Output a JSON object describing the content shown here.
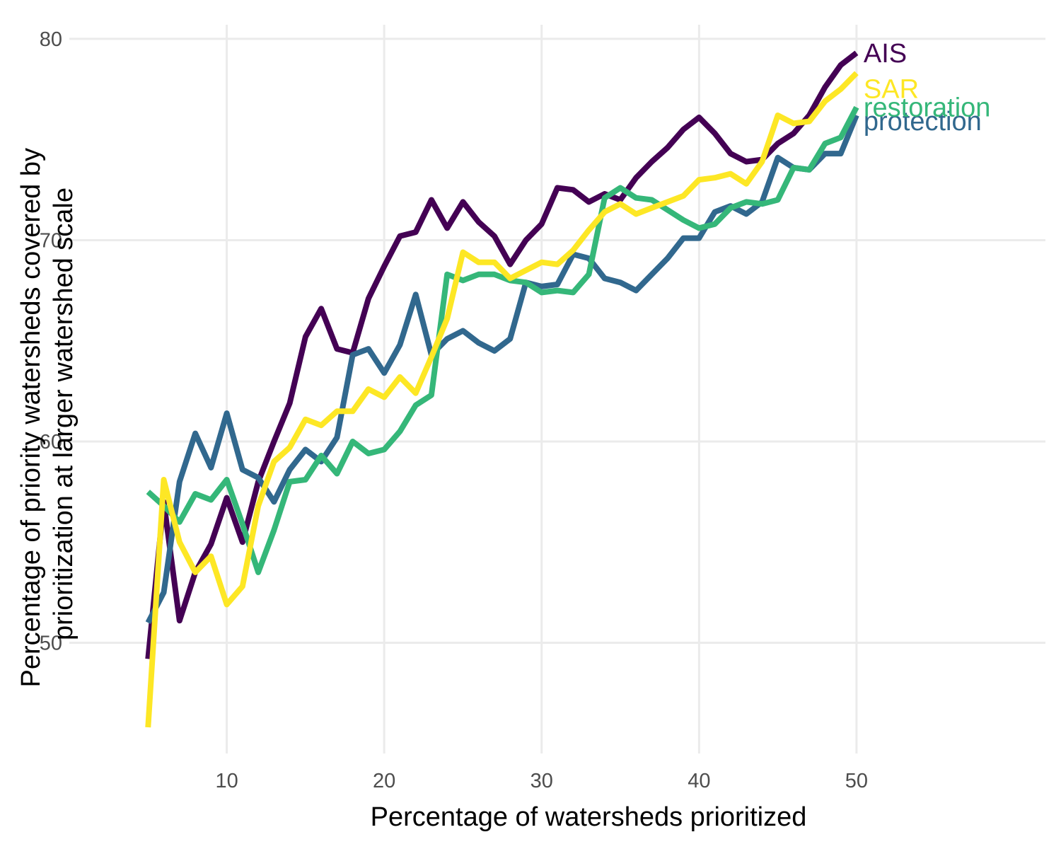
{
  "chart_data": {
    "type": "line",
    "xlabel": "Percentage of watersheds prioritized",
    "ylabel_lines": [
      "Percentage of priority watersheds covered by",
      "prioritization at larger watershed scale"
    ],
    "xlim": [
      0,
      62
    ],
    "ylim": [
      44.5,
      80.7
    ],
    "x_ticks": [
      10,
      20,
      30,
      40,
      50
    ],
    "y_ticks": [
      50,
      60,
      70,
      80
    ],
    "grid": true,
    "legend": "direct labels at line ends",
    "x": [
      5,
      6,
      7,
      8,
      9,
      10,
      11,
      12,
      13,
      14,
      15,
      16,
      17,
      18,
      19,
      20,
      21,
      22,
      23,
      24,
      25,
      26,
      27,
      28,
      29,
      30,
      31,
      32,
      33,
      34,
      35,
      36,
      37,
      38,
      39,
      40,
      41,
      42,
      43,
      44,
      45,
      46,
      47,
      48,
      49,
      50
    ],
    "series": [
      {
        "name": "AIS",
        "color": "#440154",
        "values": [
          49.2,
          57.0,
          51.1,
          53.5,
          54.9,
          57.2,
          55.0,
          58.0,
          60.0,
          61.9,
          65.2,
          66.6,
          64.6,
          64.4,
          67.1,
          68.7,
          70.2,
          70.4,
          72.0,
          70.6,
          71.9,
          70.9,
          70.2,
          68.8,
          70.0,
          70.8,
          72.6,
          72.5,
          71.9,
          72.3,
          72.0,
          73.1,
          73.9,
          74.6,
          75.5,
          76.1,
          75.3,
          74.3,
          73.9,
          74.0,
          74.8,
          75.3,
          76.2,
          77.6,
          78.7,
          79.3
        ]
      },
      {
        "name": "protection",
        "color": "#31688e",
        "values": [
          51.0,
          52.5,
          58.0,
          60.4,
          58.7,
          61.4,
          58.6,
          58.2,
          57.0,
          58.6,
          59.6,
          59.0,
          60.2,
          64.3,
          64.6,
          63.4,
          64.8,
          67.3,
          64.3,
          65.1,
          65.5,
          64.9,
          64.5,
          65.1,
          67.9,
          67.7,
          67.8,
          69.3,
          69.1,
          68.1,
          67.9,
          67.5,
          68.3,
          69.1,
          70.1,
          70.1,
          71.4,
          71.7,
          71.3,
          71.9,
          74.1,
          73.6,
          73.5,
          74.3,
          74.3,
          76.2
        ]
      },
      {
        "name": "restoration",
        "color": "#35b779",
        "values": [
          57.5,
          56.8,
          56.0,
          57.4,
          57.1,
          58.1,
          55.9,
          53.5,
          55.6,
          58.0,
          58.1,
          59.3,
          58.4,
          60.0,
          59.4,
          59.6,
          60.5,
          61.8,
          62.3,
          68.3,
          68.0,
          68.3,
          68.3,
          68.0,
          67.9,
          67.4,
          67.5,
          67.4,
          68.3,
          72.1,
          72.6,
          72.1,
          72.0,
          71.5,
          71.0,
          70.6,
          70.8,
          71.6,
          71.9,
          71.8,
          72.0,
          73.6,
          73.5,
          74.8,
          75.1,
          76.6
        ]
      },
      {
        "name": "SAR",
        "color": "#fde725",
        "values": [
          45.8,
          58.1,
          55.0,
          53.5,
          54.3,
          51.9,
          52.8,
          56.8,
          59.0,
          59.7,
          61.1,
          60.8,
          61.5,
          61.5,
          62.6,
          62.2,
          63.2,
          62.4,
          64.2,
          66.1,
          69.4,
          68.9,
          68.9,
          68.1,
          68.5,
          68.9,
          68.8,
          69.5,
          70.5,
          71.4,
          71.8,
          71.3,
          71.6,
          71.9,
          72.2,
          73.0,
          73.1,
          73.3,
          72.8,
          73.9,
          76.2,
          75.8,
          75.9,
          76.9,
          77.5,
          78.3
        ]
      }
    ]
  }
}
